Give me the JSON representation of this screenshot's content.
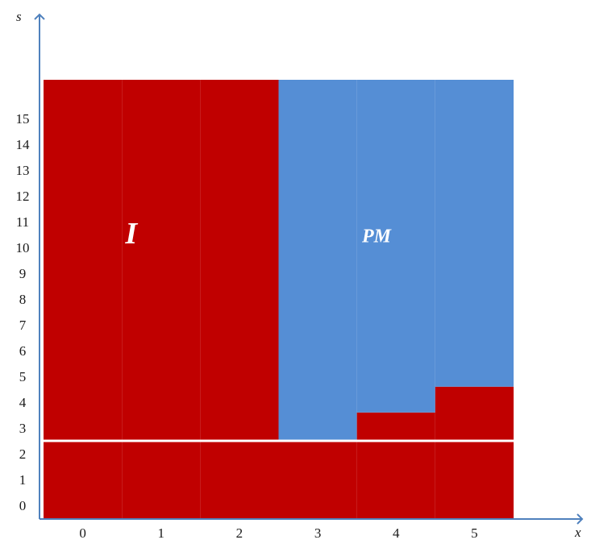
{
  "chart_data": {
    "type": "heatmap",
    "title": "",
    "xlabel": "x",
    "ylabel": "s",
    "x_categories": [
      "0",
      "1",
      "2",
      "3",
      "4",
      "5"
    ],
    "y_ticks": [
      "0",
      "1",
      "2",
      "3",
      "4",
      "5",
      "6",
      "7",
      "8",
      "9",
      "10",
      "11",
      "12",
      "13",
      "14",
      "15"
    ],
    "xlim": [
      -0.5,
      5.5
    ],
    "ylim": [
      -0.5,
      16.5
    ],
    "regions": [
      {
        "name": "I",
        "label": "I",
        "color": "#c00000"
      },
      {
        "name": "PM",
        "label": "PM",
        "color": "#558ed5"
      }
    ],
    "boundary": {
      "description": "smallest s at which PM is chosen, per x",
      "x": [
        0,
        1,
        2,
        3,
        4,
        5
      ],
      "pm_from_s": [
        null,
        null,
        null,
        2.5,
        3.6,
        4.6
      ]
    },
    "threshold_line": {
      "s": 2.5,
      "color": "#ffffff"
    },
    "grid": false,
    "legend": "none"
  }
}
